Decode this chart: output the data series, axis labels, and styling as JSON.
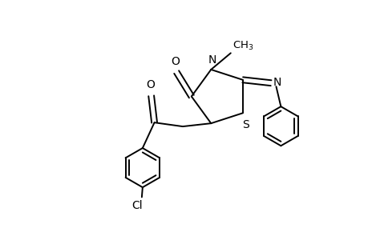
{
  "bg_color": "#ffffff",
  "line_color": "#000000",
  "line_width": 1.4,
  "font_size": 10,
  "figsize": [
    4.6,
    3.0
  ],
  "dpi": 100,
  "xlim": [
    0,
    9.2
  ],
  "ylim": [
    0,
    6.0
  ]
}
